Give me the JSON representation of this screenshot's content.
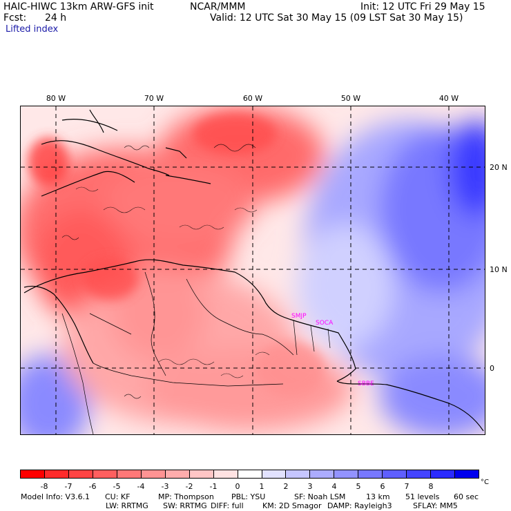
{
  "header": {
    "title": "HAIC-HIWC 13km ARW-GFS init",
    "org": "NCAR/MMM",
    "init": "Init: 12 UTC Fri 29 May 15",
    "fcst_label": "Fcst:",
    "fcst_value": "24 h",
    "valid": "Valid: 12 UTC Sat 30 May 15 (09 LST Sat 30 May 15)",
    "field": "Lifted index"
  },
  "map": {
    "lon_labels": [
      "80 W",
      "70 W",
      "60 W",
      "50 W",
      "40 W"
    ],
    "lat_labels": [
      "20 N",
      "10 N",
      "0"
    ],
    "stations": [
      "SMJP",
      "SOCA",
      "SBBE"
    ],
    "colors": {
      "unstable": "#ff0000",
      "neutral": "#ffffff",
      "stable": "#0000ee",
      "station": "#ff00ff"
    }
  },
  "colorbar": {
    "labels": [
      "-8",
      "-7",
      "-6",
      "-5",
      "-4",
      "-3",
      "-2",
      "-1",
      "0",
      "1",
      "2",
      "3",
      "4",
      "5",
      "6",
      "7",
      "8"
    ],
    "unit": "°C",
    "colors": [
      "#ff0000",
      "#ff2b2b",
      "#ff4444",
      "#ff5f5f",
      "#ff7878",
      "#ff9393",
      "#ffacac",
      "#ffc6c6",
      "#ffe2e2",
      "#ffffff",
      "#e2e2ff",
      "#c6c6ff",
      "#acacff",
      "#9393ff",
      "#7878ff",
      "#5f5fff",
      "#4444ff",
      "#2b2bff",
      "#0000ee"
    ]
  },
  "footer": {
    "line1": [
      "Model Info: V3.6.1",
      "CU: KF",
      "MP: Thompson",
      "PBL: YSU",
      "SF: Noah LSM",
      "13 km",
      "51 levels",
      "60 sec"
    ],
    "line2": [
      "LW: RRTMG",
      "SW: RRTMG",
      "DIFF: full",
      "KM: 2D Smagor",
      "DAMP: Rayleigh3",
      "SFLAY: MM5"
    ]
  }
}
